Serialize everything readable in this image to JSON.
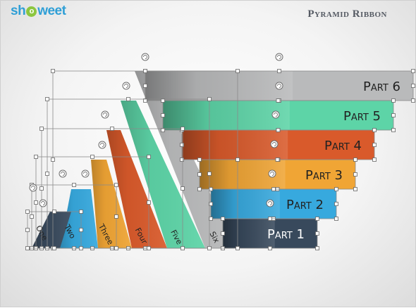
{
  "header": {
    "logo_prefix": "sh",
    "logo_o": "o",
    "logo_suffix": "weet",
    "title": "Pyramid Ribbon"
  },
  "ribbons": [
    {
      "label": "Part 6",
      "color": "#b9babb",
      "text_color": "#222222"
    },
    {
      "label": "Part 5",
      "color": "#5dd4a7",
      "text_color": "#222222"
    },
    {
      "label": "Part 4",
      "color": "#d95a2b",
      "text_color": "#222222"
    },
    {
      "label": "Part 3",
      "color": "#f0a535",
      "text_color": "#222222"
    },
    {
      "label": "Part 2",
      "color": "#37a9de",
      "text_color": "#222222"
    },
    {
      "label": "Part 1",
      "color": "#38495c",
      "text_color": "#ffffff"
    }
  ],
  "diagonal_labels": [
    "Six",
    "Five",
    "Four",
    "Three",
    "Two",
    "One"
  ],
  "icons": [
    "rotate-handle-icon",
    "selection-handle-icon"
  ]
}
